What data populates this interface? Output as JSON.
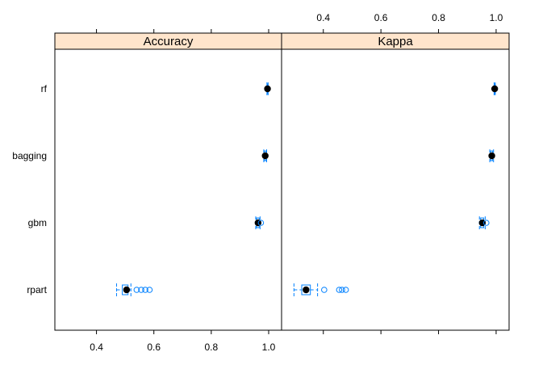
{
  "chart_data": {
    "type": "box",
    "title": "",
    "xlabel": "",
    "ylabel": "",
    "categories": [
      "rf",
      "bagging",
      "gbm",
      "rpart"
    ],
    "xlim": [
      0.255,
      1.045
    ],
    "xticks": [
      0.4,
      0.6,
      0.8,
      1.0
    ],
    "xtick_labels": [
      "0.4",
      "0.6",
      "0.8",
      "1.0"
    ],
    "grid": false,
    "panels": [
      {
        "strip_label": "Accuracy",
        "boxes": [
          {
            "category": "rf",
            "whisker_low": 0.994,
            "q1": 0.995,
            "median": 0.996,
            "q3": 0.997,
            "whisker_high": 0.998,
            "outliers": []
          },
          {
            "category": "bagging",
            "whisker_low": 0.983,
            "q1": 0.985,
            "median": 0.988,
            "q3": 0.991,
            "whisker_high": 0.993,
            "outliers": []
          },
          {
            "category": "gbm",
            "whisker_low": 0.955,
            "q1": 0.958,
            "median": 0.963,
            "q3": 0.967,
            "whisker_high": 0.97,
            "outliers": [
              0.973
            ]
          },
          {
            "category": "rpart",
            "whisker_low": 0.47,
            "q1": 0.49,
            "median": 0.505,
            "q3": 0.51,
            "whisker_high": 0.52,
            "outliers": [
              0.54,
              0.556,
              0.57,
              0.585
            ]
          }
        ]
      },
      {
        "strip_label": "Kappa",
        "boxes": [
          {
            "category": "rf",
            "whisker_low": 0.993,
            "q1": 0.994,
            "median": 0.995,
            "q3": 0.996,
            "whisker_high": 0.997,
            "outliers": []
          },
          {
            "category": "bagging",
            "whisker_low": 0.978,
            "q1": 0.981,
            "median": 0.985,
            "q3": 0.988,
            "whisker_high": 0.991,
            "outliers": []
          },
          {
            "category": "gbm",
            "whisker_low": 0.942,
            "q1": 0.946,
            "median": 0.952,
            "q3": 0.957,
            "whisker_high": 0.962,
            "outliers": [
              0.966
            ]
          },
          {
            "category": "rpart",
            "whisker_low": 0.298,
            "q1": 0.325,
            "median": 0.34,
            "q3": 0.355,
            "whisker_high": 0.38,
            "outliers": [
              0.403,
              0.455,
              0.465,
              0.478
            ]
          }
        ]
      }
    ],
    "colors": {
      "box": "#0080ff",
      "median_dot": "#000000",
      "strip": "#ffe5cc",
      "frame": "#000000"
    }
  }
}
